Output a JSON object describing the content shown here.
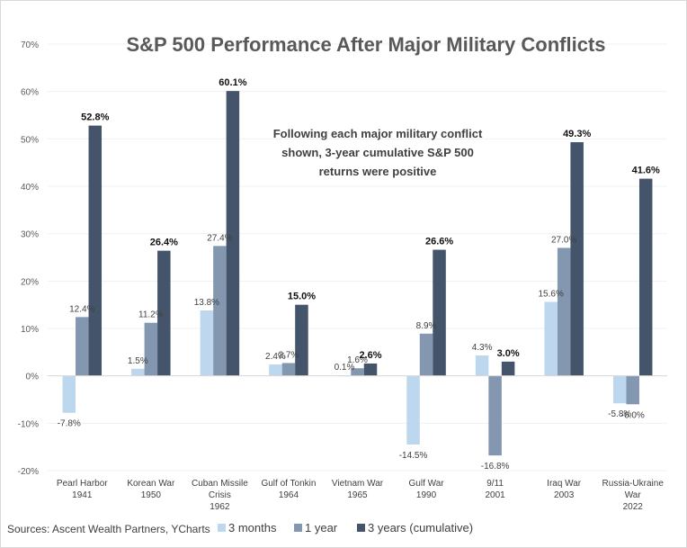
{
  "chart_data": {
    "type": "bar",
    "title": "S&P 500 Performance After Major Military Conflicts",
    "xlabel": "",
    "ylabel": "",
    "ylim": [
      -20,
      70
    ],
    "yticks": [
      -20,
      -10,
      0,
      10,
      20,
      30,
      40,
      50,
      60,
      70
    ],
    "ytick_labels": [
      "-20%",
      "-10%",
      "0%",
      "10%",
      "20%",
      "30%",
      "40%",
      "50%",
      "60%",
      "70%"
    ],
    "grid": true,
    "legend_position": "bottom",
    "categories": [
      [
        "Pearl Harbor",
        "1941"
      ],
      [
        "Korean War",
        "1950"
      ],
      [
        "Cuban Missile",
        "Crisis",
        "1962"
      ],
      [
        "Gulf of Tonkin",
        "1964"
      ],
      [
        "Vietnam War",
        "1965"
      ],
      [
        "Gulf War",
        "1990"
      ],
      [
        "9/11",
        "2001"
      ],
      [
        "Iraq War",
        "2003"
      ],
      [
        "Russia-Ukraine",
        "War",
        "2022"
      ]
    ],
    "series": [
      {
        "name": "3 months",
        "color": "#bdd7ee",
        "values": [
          -7.8,
          1.5,
          13.8,
          2.4,
          0.1,
          -14.5,
          4.3,
          15.6,
          -5.8
        ],
        "labels": [
          "-7.8%",
          "1.5%",
          "13.8%",
          "2.4%",
          "0.1%",
          "-14.5%",
          "4.3%",
          "15.6%",
          "-5.8%"
        ]
      },
      {
        "name": "1 year",
        "color": "#8497b0",
        "values": [
          12.4,
          11.2,
          27.4,
          2.7,
          1.6,
          8.9,
          -16.8,
          27.0,
          -6.0
        ],
        "labels": [
          "12.4%",
          "11.2%",
          "27.4%",
          "2.7%",
          "1.6%",
          "8.9%",
          "-16.8%",
          "27.0%",
          "-6.0%"
        ]
      },
      {
        "name": "3 years (cumulative)",
        "color": "#44546a",
        "values": [
          52.8,
          26.4,
          60.1,
          15.0,
          2.6,
          26.6,
          3.0,
          49.3,
          41.6
        ],
        "labels": [
          "52.8%",
          "26.4%",
          "60.1%",
          "15.0%",
          "2.6%",
          "26.6%",
          "3.0%",
          "49.3%",
          "41.6%"
        ]
      }
    ],
    "annotation": [
      "Following each major military conflict",
      "shown, 3-year cumulative S&P 500",
      "returns were positive"
    ],
    "source": "Sources: Ascent Wealth Partners, YCharts"
  }
}
